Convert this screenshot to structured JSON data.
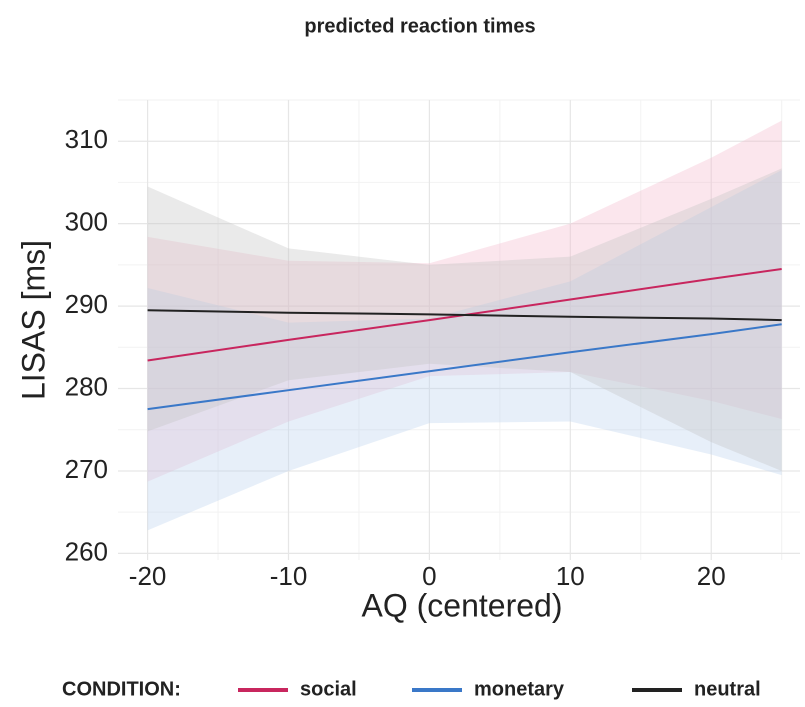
{
  "chart_data": {
    "type": "line",
    "title": "predicted reaction times",
    "xlabel": "AQ (centered)",
    "ylabel": "LISAS [ms]",
    "legend_title": "CONDITION:",
    "legend_position": "bottom",
    "x": [
      -20,
      -10,
      0,
      10,
      20,
      25
    ],
    "series": [
      {
        "name": "social",
        "color": "#c8265e",
        "fill": "#f4b8cc",
        "values": [
          283.4,
          285.9,
          288.3,
          290.8,
          293.3,
          294.5
        ],
        "lower": [
          268.7,
          276,
          281.5,
          282,
          278.5,
          276.3
        ],
        "upper": [
          298.4,
          295.5,
          295.2,
          300,
          308,
          312.5
        ]
      },
      {
        "name": "monetary",
        "color": "#3a78c8",
        "fill": "#b9d0ee",
        "values": [
          277.5,
          279.8,
          282.1,
          284.4,
          286.6,
          287.8
        ],
        "lower": [
          262.8,
          270,
          275.8,
          276,
          272,
          269.5
        ],
        "upper": [
          292.2,
          288,
          288.5,
          293,
          302,
          306.5
        ]
      },
      {
        "name": "neutral",
        "color": "#222222",
        "fill": "#c4c4c4",
        "values": [
          289.5,
          289.2,
          289.0,
          288.7,
          288.5,
          288.3
        ],
        "lower": [
          274.8,
          281,
          283,
          282,
          273.5,
          270
        ],
        "upper": [
          304.5,
          297,
          295,
          296,
          303,
          306.7
        ]
      }
    ],
    "xlim": [
      -22.1,
      26.3
    ],
    "ylim": [
      259.2,
      315
    ],
    "xticks": [
      -20,
      -10,
      0,
      10,
      20
    ],
    "yticks": [
      260,
      270,
      280,
      290,
      300,
      310
    ],
    "grid": true,
    "minor_grid": true
  }
}
